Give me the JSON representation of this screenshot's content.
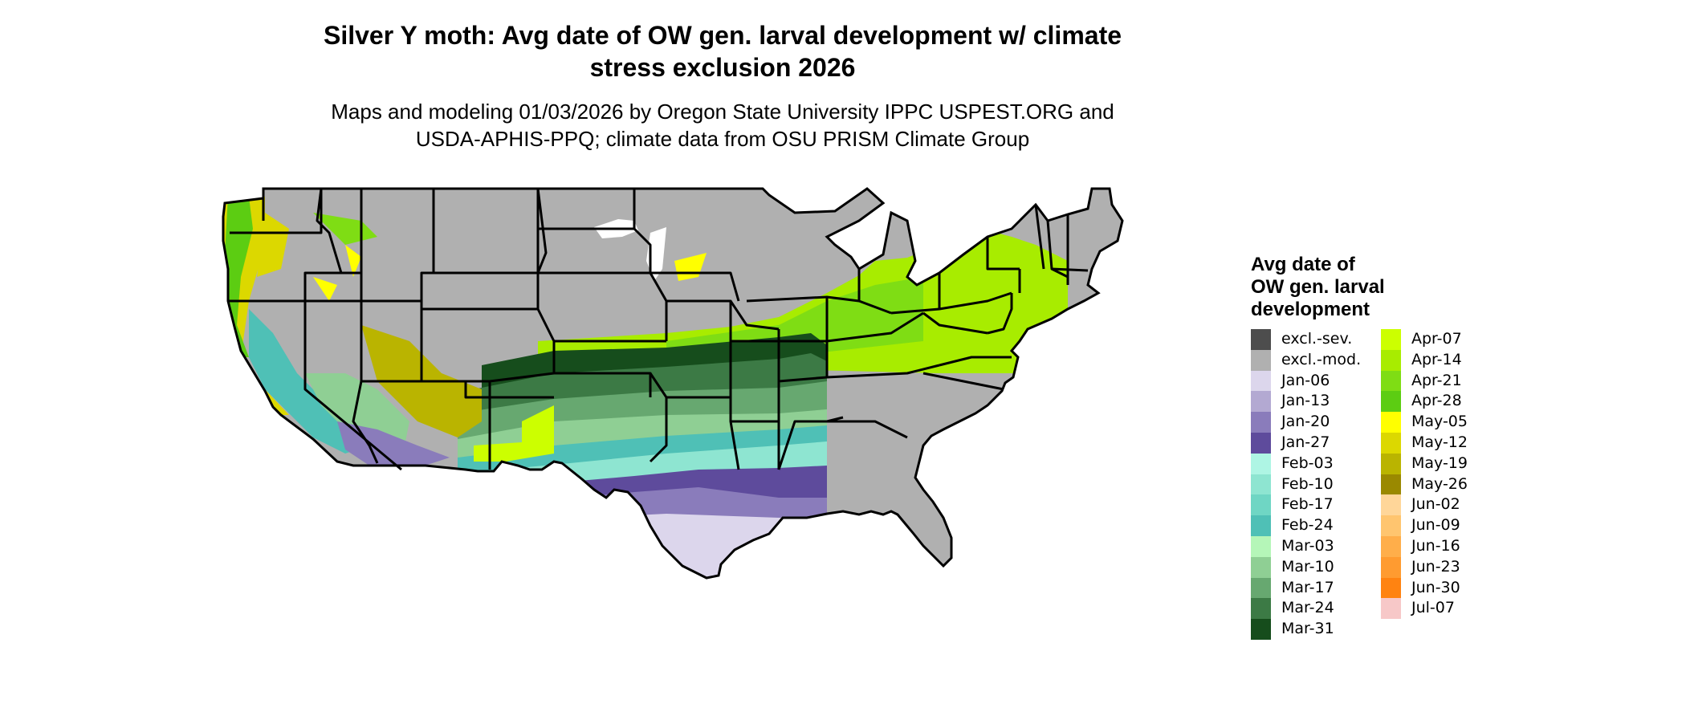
{
  "title_line1": "Silver Y moth: Avg date of OW gen. larval development w/ climate",
  "title_line2": "stress exclusion 2026",
  "subtitle_line1": "Maps and modeling 01/03/2026 by Oregon State University IPPC USPEST.ORG and",
  "subtitle_line2": "USDA-APHIS-PPQ; climate data from OSU PRISM Climate Group",
  "legend": {
    "title_line1": "Avg date of",
    "title_line2": "OW gen. larval",
    "title_line3": "development",
    "col1": [
      {
        "label": "excl.-sev.",
        "color": "#4d4d4d"
      },
      {
        "label": "excl.-mod.",
        "color": "#b0b0b0"
      },
      {
        "label": "Jan-06",
        "color": "#dcd6ec"
      },
      {
        "label": "Jan-13",
        "color": "#b3a9d2"
      },
      {
        "label": "Jan-20",
        "color": "#8a7cbb"
      },
      {
        "label": "Jan-27",
        "color": "#5e4b9c"
      },
      {
        "label": "Feb-03",
        "color": "#aef5e4"
      },
      {
        "label": "Feb-10",
        "color": "#8ee5d1"
      },
      {
        "label": "Feb-17",
        "color": "#6fd6c4"
      },
      {
        "label": "Feb-24",
        "color": "#4fc0b6"
      },
      {
        "label": "Mar-03",
        "color": "#b5f6b8"
      },
      {
        "label": "Mar-10",
        "color": "#8fcf94"
      },
      {
        "label": "Mar-17",
        "color": "#67a870"
      },
      {
        "label": "Mar-24",
        "color": "#3c7a45"
      },
      {
        "label": "Mar-31",
        "color": "#164d1c"
      }
    ],
    "col2": [
      {
        "label": "Apr-07",
        "color": "#ccff00"
      },
      {
        "label": "Apr-14",
        "color": "#a8ec00"
      },
      {
        "label": "Apr-21",
        "color": "#7fdd14"
      },
      {
        "label": "Apr-28",
        "color": "#5ccd12"
      },
      {
        "label": "May-05",
        "color": "#ffff00"
      },
      {
        "label": "May-12",
        "color": "#dcd800"
      },
      {
        "label": "May-19",
        "color": "#bab400"
      },
      {
        "label": "May-26",
        "color": "#9a8900"
      },
      {
        "label": "Jun-02",
        "color": "#ffd699"
      },
      {
        "label": "Jun-09",
        "color": "#ffc56f"
      },
      {
        "label": "Jun-16",
        "color": "#ffae4a"
      },
      {
        "label": "Jun-23",
        "color": "#ff9b30"
      },
      {
        "label": "Jun-30",
        "color": "#ff8311"
      },
      {
        "label": "Jul-07",
        "color": "#f7c8c8"
      }
    ]
  }
}
